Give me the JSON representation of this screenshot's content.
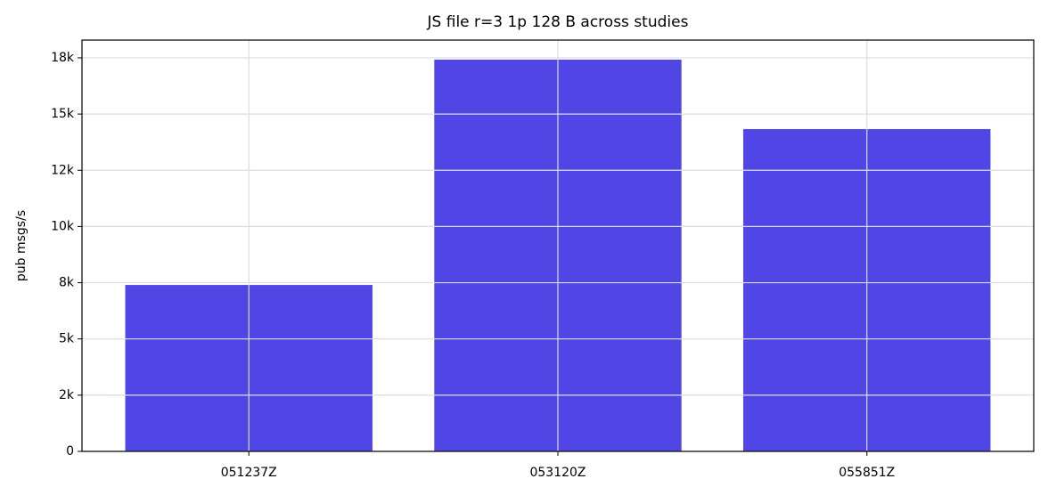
{
  "chart_data": {
    "type": "bar",
    "title": "JS file r=3 1p 128 B across studies",
    "y_label": "pub msgs/s",
    "categories": [
      "051237Z",
      "053120Z",
      "055851Z"
    ],
    "values": [
      7400,
      17420,
      14330
    ],
    "color": "#4f46e5",
    "ylim": [
      0,
      18290
    ],
    "yticks": [
      0,
      {
        "value": 2500,
        "label": "2k"
      },
      {
        "value": 5000,
        "label": "5k"
      },
      {
        "value": 7500,
        "label": "8k"
      },
      {
        "value": 10000,
        "label": "10k"
      },
      {
        "value": 12500,
        "label": "12k"
      },
      {
        "value": 15000,
        "label": "15k"
      },
      {
        "value": 17500,
        "label": "18k"
      }
    ],
    "grid": true
  }
}
